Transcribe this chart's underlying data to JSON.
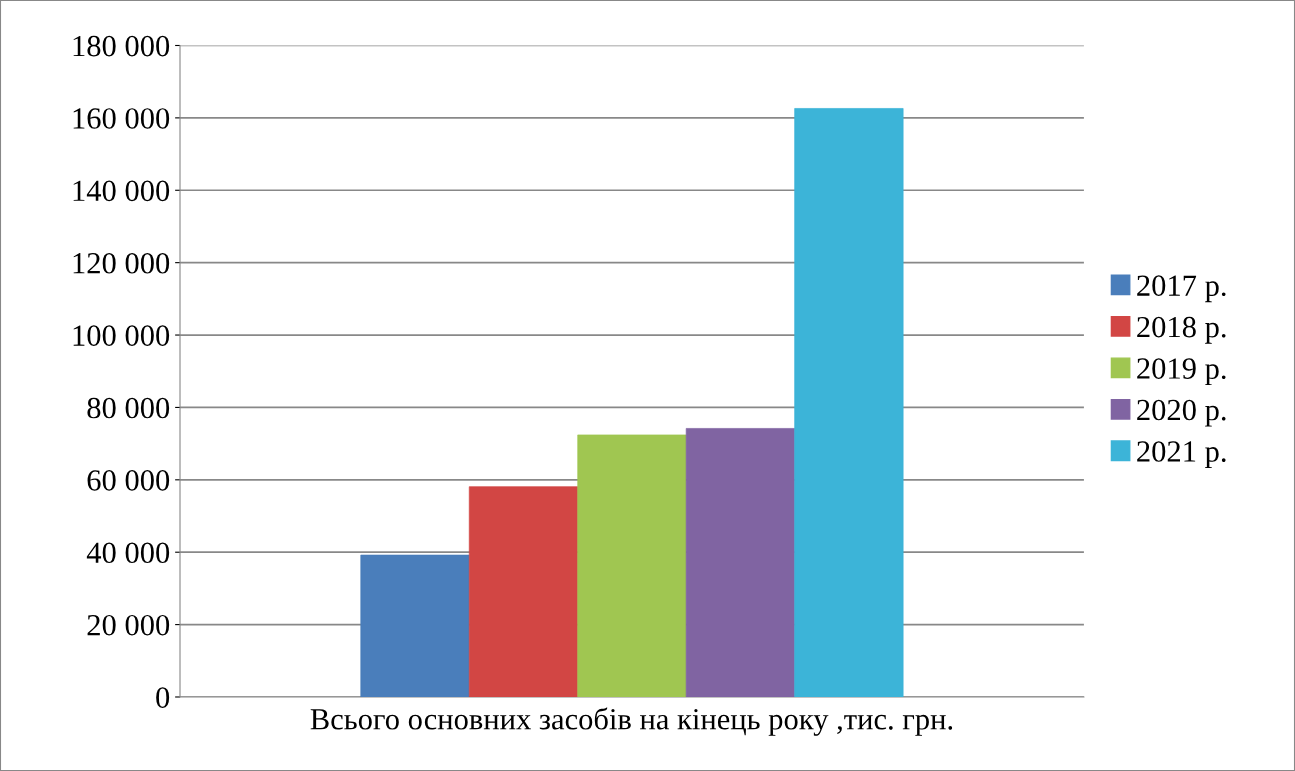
{
  "chart_data": {
    "type": "bar",
    "xlabel": "Всього основних засобів на кінець року ,тис. грн.",
    "categories": [
      null
    ],
    "series": [
      {
        "name": "2017 р.",
        "color": "#4a7ebb",
        "values": [
          39200
        ]
      },
      {
        "name": "2018 р.",
        "color": "#d24644",
        "values": [
          58100
        ]
      },
      {
        "name": "2019 р.",
        "color": "#a0c651",
        "values": [
          72400
        ]
      },
      {
        "name": "2020 р.",
        "color": "#8064a2",
        "values": [
          74200
        ]
      },
      {
        "name": "2021 р.",
        "color": "#3cb4d8",
        "values": [
          162600
        ]
      }
    ],
    "ylim": [
      0,
      180000
    ],
    "yticks": [
      0,
      {
        "value": 20000,
        "label": "20 000"
      },
      {
        "value": 40000,
        "label": "40 000"
      },
      {
        "value": 60000,
        "label": "60 000"
      },
      {
        "value": 80000,
        "label": "80 000"
      },
      {
        "value": 100000,
        "label": "100 000"
      },
      {
        "value": 120000,
        "label": "120 000"
      },
      {
        "value": 140000,
        "label": "140 000"
      },
      {
        "value": 160000,
        "label": "160 000"
      },
      {
        "value": 180000,
        "label": "180 000"
      }
    ],
    "grid": "y",
    "legend": "right"
  }
}
